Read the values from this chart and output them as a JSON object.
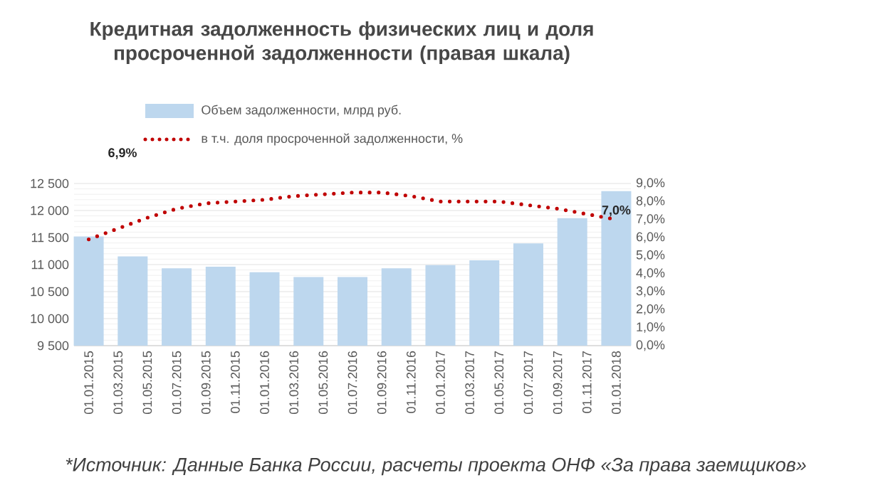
{
  "chart_data": {
    "type": "bar",
    "title": "Кредитная задолженность физических лиц и доля просроченной задолженности (правая шкала)",
    "xlim": [
      "2014-12-01",
      "2018-02-01"
    ],
    "xticks": [
      {
        "value": "2015-01-01",
        "label": "01.01.2015"
      },
      {
        "value": "2015-03-01",
        "label": "01.03.2015"
      },
      {
        "value": "2015-05-01",
        "label": "01.05.2015"
      },
      {
        "value": "2015-07-01",
        "label": "01.07.2015"
      },
      {
        "value": "2015-09-01",
        "label": "01.09.2015"
      },
      {
        "value": "2015-11-01",
        "label": "01.11.2015"
      },
      {
        "value": "2016-01-01",
        "label": "01.01.2016"
      },
      {
        "value": "2016-03-01",
        "label": "01.03.2016"
      },
      {
        "value": "2016-05-01",
        "label": "01.05.2016"
      },
      {
        "value": "2016-07-01",
        "label": "01.07.2016"
      },
      {
        "value": "2016-09-01",
        "label": "01.09.2016"
      },
      {
        "value": "2016-11-01",
        "label": "01.11.2016"
      },
      {
        "value": "2017-01-01",
        "label": "01.01.2017"
      },
      {
        "value": "2017-03-01",
        "label": "01.03.2017"
      },
      {
        "value": "2017-05-01",
        "label": "01.05.2017"
      },
      {
        "value": "2017-07-01",
        "label": "01.07.2017"
      },
      {
        "value": "2017-09-01",
        "label": "01.09.2017"
      },
      {
        "value": "2017-11-01",
        "label": "01.11.2017"
      },
      {
        "value": "2018-01-01",
        "label": "01.01.2018"
      }
    ],
    "ylim": [
      9500,
      12500
    ],
    "yticks": [
      {
        "value": 9500,
        "label": "9 500"
      },
      {
        "value": 10000,
        "label": "10 000"
      },
      {
        "value": 10500,
        "label": "10 500"
      },
      {
        "value": 11000,
        "label": "11 000"
      },
      {
        "value": 11500,
        "label": "11 500"
      },
      {
        "value": 12000,
        "label": "12 000"
      },
      {
        "value": 12500,
        "label": "12 500"
      }
    ],
    "y2lim": [
      0,
      9
    ],
    "y2ticks": [
      {
        "value": 0,
        "label": "0,0%"
      },
      {
        "value": 1,
        "label": "1,0%"
      },
      {
        "value": 2,
        "label": "2,0%"
      },
      {
        "value": 3,
        "label": "3,0%"
      },
      {
        "value": 4,
        "label": "4,0%"
      },
      {
        "value": 5,
        "label": "5,0%"
      },
      {
        "value": 6,
        "label": "6,0%"
      },
      {
        "value": 7,
        "label": "7,0%"
      },
      {
        "value": 8,
        "label": "8,0%"
      },
      {
        "value": 9,
        "label": "9,0%"
      }
    ],
    "grid": "y",
    "legend": "top",
    "series": [
      {
        "name": "Объем задолженности, млрд руб.",
        "color": "#bdd7ee",
        "x": [
          "2015-01-01",
          "2015-04-01",
          "2015-07-01",
          "2015-10-01",
          "2016-01-01",
          "2016-04-01",
          "2016-07-01",
          "2016-10-01",
          "2017-01-01",
          "2017-04-01",
          "2017-07-01",
          "2017-10-01",
          "2018-01-01"
        ],
        "values": [
          11520,
          11150,
          10930,
          10960,
          10860,
          10770,
          10770,
          10930,
          10990,
          11080,
          11390,
          11860,
          12360
        ]
      },
      {
        "name": "в т.ч. доля просроченной задолженности, %",
        "type": "line",
        "axis": "y2",
        "color": "#c00000",
        "line_style": "dotted",
        "x": [
          "2015-01-01",
          "2015-03-01",
          "2015-05-01",
          "2015-07-01",
          "2015-09-01",
          "2015-11-01",
          "2016-01-01",
          "2016-03-01",
          "2016-05-01",
          "2016-07-01",
          "2016-09-01",
          "2016-11-01",
          "2017-01-01",
          "2017-03-01",
          "2017-05-01",
          "2017-07-01",
          "2017-09-01",
          "2017-11-01",
          "2018-01-01"
        ],
        "values": [
          5.9,
          6.5,
          7.1,
          7.6,
          7.9,
          8.0,
          8.1,
          8.3,
          8.4,
          8.5,
          8.5,
          8.3,
          8.0,
          8.0,
          8.0,
          7.8,
          7.6,
          7.3,
          7.0
        ],
        "value_labels": [
          null,
          null,
          null,
          null,
          null,
          null,
          null,
          null,
          null,
          null,
          null,
          null,
          null,
          null,
          null,
          null,
          null,
          null,
          "7,0%"
        ]
      }
    ],
    "annotations": [
      "6,9%",
      "*Источник: Данные Банка России, расчеты проекта ОНФ «За права заемщиков»"
    ]
  }
}
